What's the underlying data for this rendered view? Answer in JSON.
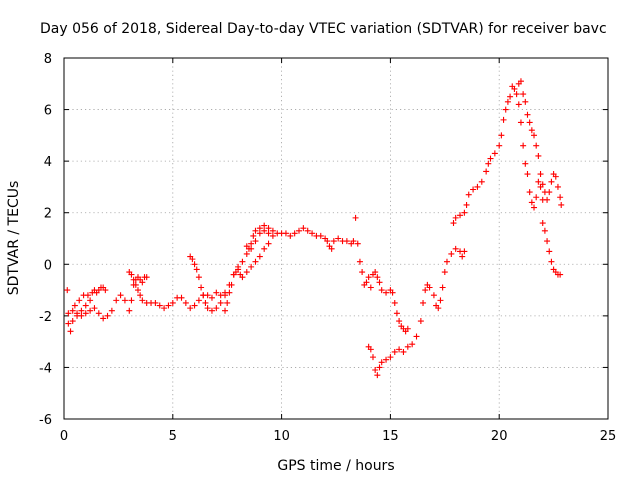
{
  "chart_data": {
    "type": "scatter",
    "title": "Day 056 of 2018, Sidereal Day-to-day VTEC variation (SDTVAR) for receiver bavc",
    "xlabel": "GPS time / hours",
    "ylabel": "SDTVAR / TECUs",
    "xlim": [
      0,
      25
    ],
    "ylim": [
      -6,
      8
    ],
    "xticks": [
      "0",
      "5",
      "10",
      "15",
      "20",
      "25"
    ],
    "yticks": [
      "-6",
      "-4",
      "-2",
      "0",
      "2",
      "4",
      "6",
      "8"
    ],
    "grid": true,
    "marker": "plus",
    "color": "#ff0000",
    "series": [
      {
        "name": "",
        "points": [
          [
            0.15,
            -1.0
          ],
          [
            0.2,
            -2.3
          ],
          [
            0.3,
            -2.6
          ],
          [
            0.4,
            -2.2
          ],
          [
            0.5,
            -1.6
          ],
          [
            0.6,
            -2.0
          ],
          [
            0.7,
            -1.4
          ],
          [
            0.8,
            -1.8
          ],
          [
            0.9,
            -1.2
          ],
          [
            1.0,
            -1.6
          ],
          [
            1.1,
            -1.2
          ],
          [
            1.2,
            -1.4
          ],
          [
            1.3,
            -1.1
          ],
          [
            1.4,
            -1.0
          ],
          [
            1.5,
            -1.1
          ],
          [
            1.6,
            -1.0
          ],
          [
            1.7,
            -0.9
          ],
          [
            1.8,
            -0.9
          ],
          [
            1.9,
            -1.0
          ],
          [
            0.2,
            -1.9
          ],
          [
            0.4,
            -1.8
          ],
          [
            0.6,
            -1.9
          ],
          [
            0.8,
            -2.0
          ],
          [
            1.0,
            -1.9
          ],
          [
            1.2,
            -1.8
          ],
          [
            1.4,
            -1.7
          ],
          [
            1.6,
            -1.9
          ],
          [
            1.8,
            -2.1
          ],
          [
            2.0,
            -2.0
          ],
          [
            2.2,
            -1.8
          ],
          [
            2.4,
            -1.4
          ],
          [
            2.6,
            -1.2
          ],
          [
            2.8,
            -1.4
          ],
          [
            3.0,
            -1.8
          ],
          [
            3.1,
            -1.4
          ],
          [
            3.2,
            -0.8
          ],
          [
            3.3,
            -0.6
          ],
          [
            3.4,
            -0.5
          ],
          [
            3.5,
            -0.6
          ],
          [
            3.6,
            -0.7
          ],
          [
            3.7,
            -0.5
          ],
          [
            3.8,
            -0.5
          ],
          [
            3.0,
            -0.3
          ],
          [
            3.1,
            -0.4
          ],
          [
            3.2,
            -0.6
          ],
          [
            3.3,
            -0.8
          ],
          [
            3.4,
            -1.0
          ],
          [
            3.5,
            -1.2
          ],
          [
            3.6,
            -1.4
          ],
          [
            3.8,
            -1.5
          ],
          [
            4.0,
            -1.5
          ],
          [
            4.2,
            -1.5
          ],
          [
            4.4,
            -1.6
          ],
          [
            4.6,
            -1.7
          ],
          [
            4.8,
            -1.6
          ],
          [
            5.0,
            -1.5
          ],
          [
            5.2,
            -1.3
          ],
          [
            5.4,
            -1.3
          ],
          [
            5.6,
            -1.5
          ],
          [
            5.8,
            -1.7
          ],
          [
            6.0,
            -1.6
          ],
          [
            6.2,
            -1.4
          ],
          [
            6.4,
            -1.2
          ],
          [
            6.6,
            -1.2
          ],
          [
            6.8,
            -1.3
          ],
          [
            7.0,
            -1.1
          ],
          [
            7.2,
            -1.2
          ],
          [
            7.4,
            -1.1
          ],
          [
            5.8,
            0.3
          ],
          [
            5.9,
            0.2
          ],
          [
            6.0,
            0.0
          ],
          [
            6.1,
            -0.2
          ],
          [
            6.2,
            -0.5
          ],
          [
            6.3,
            -0.9
          ],
          [
            6.4,
            -1.2
          ],
          [
            6.5,
            -1.5
          ],
          [
            6.6,
            -1.7
          ],
          [
            6.8,
            -1.8
          ],
          [
            7.0,
            -1.7
          ],
          [
            7.2,
            -1.5
          ],
          [
            7.4,
            -1.2
          ],
          [
            7.6,
            -0.8
          ],
          [
            7.8,
            -0.4
          ],
          [
            8.0,
            -0.1
          ],
          [
            8.2,
            0.1
          ],
          [
            8.4,
            0.4
          ],
          [
            8.6,
            0.6
          ],
          [
            8.8,
            0.9
          ],
          [
            9.0,
            1.2
          ],
          [
            9.2,
            1.3
          ],
          [
            9.4,
            1.2
          ],
          [
            7.4,
            -1.8
          ],
          [
            7.5,
            -1.5
          ],
          [
            7.6,
            -1.1
          ],
          [
            7.7,
            -0.8
          ],
          [
            7.8,
            -0.4
          ],
          [
            7.9,
            -0.3
          ],
          [
            8.0,
            -0.2
          ],
          [
            8.1,
            -0.4
          ],
          [
            8.2,
            -0.5
          ],
          [
            8.4,
            -0.3
          ],
          [
            8.6,
            -0.1
          ],
          [
            8.8,
            0.1
          ],
          [
            9.0,
            0.3
          ],
          [
            9.2,
            0.6
          ],
          [
            9.4,
            0.8
          ],
          [
            9.6,
            1.1
          ],
          [
            8.4,
            0.7
          ],
          [
            8.5,
            0.6
          ],
          [
            8.6,
            0.8
          ],
          [
            8.7,
            1.1
          ],
          [
            8.8,
            1.3
          ],
          [
            9.0,
            1.4
          ],
          [
            9.2,
            1.5
          ],
          [
            9.4,
            1.4
          ],
          [
            9.6,
            1.3
          ],
          [
            9.8,
            1.2
          ],
          [
            10.0,
            1.2
          ],
          [
            10.2,
            1.2
          ],
          [
            10.4,
            1.1
          ],
          [
            10.6,
            1.2
          ],
          [
            10.8,
            1.3
          ],
          [
            11.0,
            1.4
          ],
          [
            11.2,
            1.3
          ],
          [
            11.4,
            1.2
          ],
          [
            11.6,
            1.1
          ],
          [
            11.8,
            1.1
          ],
          [
            12.0,
            1.0
          ],
          [
            12.1,
            0.9
          ],
          [
            12.2,
            0.7
          ],
          [
            12.3,
            0.6
          ],
          [
            12.4,
            0.9
          ],
          [
            12.6,
            1.0
          ],
          [
            12.8,
            0.9
          ],
          [
            13.0,
            0.9
          ],
          [
            13.2,
            0.8
          ],
          [
            13.3,
            0.9
          ],
          [
            13.4,
            1.8
          ],
          [
            13.5,
            0.8
          ],
          [
            13.6,
            0.1
          ],
          [
            13.7,
            -0.3
          ],
          [
            13.8,
            -0.8
          ],
          [
            13.9,
            -0.7
          ],
          [
            14.0,
            -0.5
          ],
          [
            14.1,
            -0.9
          ],
          [
            14.2,
            -0.4
          ],
          [
            14.3,
            -0.3
          ],
          [
            14.4,
            -0.5
          ],
          [
            14.5,
            -0.7
          ],
          [
            14.6,
            -1.0
          ],
          [
            14.8,
            -1.1
          ],
          [
            15.0,
            -1.0
          ],
          [
            15.1,
            -1.1
          ],
          [
            15.2,
            -1.5
          ],
          [
            15.3,
            -1.9
          ],
          [
            15.4,
            -2.2
          ],
          [
            15.5,
            -2.4
          ],
          [
            15.6,
            -2.5
          ],
          [
            15.7,
            -2.6
          ],
          [
            15.8,
            -2.5
          ],
          [
            14.0,
            -3.2
          ],
          [
            14.1,
            -3.3
          ],
          [
            14.2,
            -3.6
          ],
          [
            14.3,
            -4.1
          ],
          [
            14.4,
            -4.3
          ],
          [
            14.5,
            -4.0
          ],
          [
            14.6,
            -3.8
          ],
          [
            14.8,
            -3.7
          ],
          [
            15.0,
            -3.6
          ],
          [
            15.2,
            -3.4
          ],
          [
            15.4,
            -3.3
          ],
          [
            15.6,
            -3.4
          ],
          [
            15.8,
            -3.2
          ],
          [
            16.0,
            -3.1
          ],
          [
            16.2,
            -2.8
          ],
          [
            16.4,
            -2.2
          ],
          [
            16.5,
            -1.5
          ],
          [
            16.6,
            -1.0
          ],
          [
            16.7,
            -0.8
          ],
          [
            16.8,
            -0.9
          ],
          [
            17.0,
            -1.2
          ],
          [
            17.1,
            -1.6
          ],
          [
            17.2,
            -1.7
          ],
          [
            17.3,
            -1.4
          ],
          [
            17.4,
            -0.9
          ],
          [
            17.5,
            -0.3
          ],
          [
            17.6,
            0.1
          ],
          [
            17.8,
            0.4
          ],
          [
            18.0,
            0.6
          ],
          [
            18.2,
            0.5
          ],
          [
            18.3,
            0.3
          ],
          [
            18.4,
            0.5
          ],
          [
            17.9,
            1.6
          ],
          [
            18.0,
            1.8
          ],
          [
            18.2,
            1.9
          ],
          [
            18.4,
            2.0
          ],
          [
            18.5,
            2.3
          ],
          [
            18.6,
            2.7
          ],
          [
            18.8,
            2.9
          ],
          [
            19.0,
            3.0
          ],
          [
            19.2,
            3.2
          ],
          [
            19.4,
            3.6
          ],
          [
            19.5,
            3.9
          ],
          [
            19.6,
            4.1
          ],
          [
            19.8,
            4.3
          ],
          [
            20.0,
            4.6
          ],
          [
            20.1,
            5.0
          ],
          [
            20.2,
            5.6
          ],
          [
            20.3,
            6.0
          ],
          [
            20.4,
            6.3
          ],
          [
            20.5,
            6.5
          ],
          [
            20.6,
            6.9
          ],
          [
            20.7,
            6.8
          ],
          [
            20.8,
            6.6
          ],
          [
            20.9,
            6.2
          ],
          [
            21.0,
            5.5
          ],
          [
            21.1,
            4.6
          ],
          [
            21.2,
            3.9
          ],
          [
            21.3,
            3.5
          ],
          [
            21.4,
            2.8
          ],
          [
            21.5,
            2.4
          ],
          [
            21.6,
            2.2
          ],
          [
            21.7,
            2.6
          ],
          [
            21.8,
            3.2
          ],
          [
            21.9,
            3.0
          ],
          [
            22.0,
            2.5
          ],
          [
            20.9,
            7.0
          ],
          [
            21.0,
            7.1
          ],
          [
            21.1,
            6.6
          ],
          [
            21.2,
            6.3
          ],
          [
            21.3,
            5.8
          ],
          [
            21.4,
            5.5
          ],
          [
            21.5,
            5.2
          ],
          [
            21.6,
            5.0
          ],
          [
            21.7,
            4.6
          ],
          [
            21.8,
            4.2
          ],
          [
            21.9,
            3.5
          ],
          [
            22.0,
            3.1
          ],
          [
            22.1,
            2.8
          ],
          [
            22.2,
            2.5
          ],
          [
            22.3,
            2.8
          ],
          [
            22.4,
            3.2
          ],
          [
            22.5,
            3.5
          ],
          [
            22.6,
            3.4
          ],
          [
            22.7,
            3.0
          ],
          [
            22.8,
            2.6
          ],
          [
            22.85,
            2.3
          ],
          [
            22.0,
            1.6
          ],
          [
            22.1,
            1.3
          ],
          [
            22.2,
            0.9
          ],
          [
            22.3,
            0.5
          ],
          [
            22.4,
            0.1
          ],
          [
            22.5,
            -0.2
          ],
          [
            22.6,
            -0.3
          ],
          [
            22.7,
            -0.4
          ],
          [
            22.8,
            -0.4
          ]
        ]
      }
    ]
  }
}
